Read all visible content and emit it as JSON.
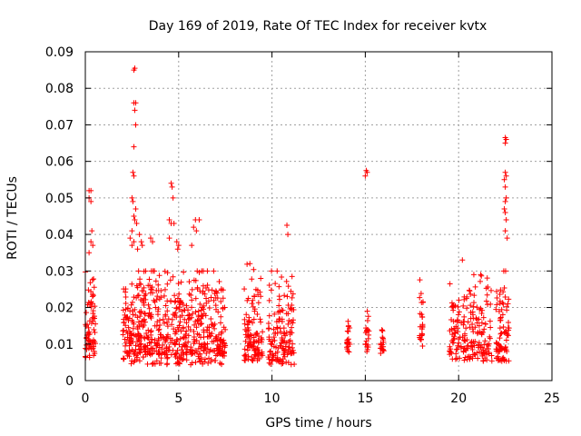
{
  "chart_data": {
    "type": "scatter",
    "title": "Day 169 of 2019, Rate Of TEC Index for receiver kvtx",
    "xlabel": "GPS time / hours",
    "ylabel": "ROTI / TECUs",
    "xlim": [
      0,
      25
    ],
    "ylim": [
      0,
      0.09
    ],
    "x_ticks": [
      0,
      5,
      10,
      15,
      20,
      25
    ],
    "y_ticks": [
      0,
      0.01,
      0.02,
      0.03,
      0.04,
      0.05,
      0.06,
      0.07,
      0.08,
      0.09
    ],
    "x_tick_labels": [
      "0",
      "5",
      "10",
      "15",
      "20",
      "25"
    ],
    "y_tick_labels": [
      "0",
      "0.01",
      "0.02",
      "0.03",
      "0.04",
      "0.05",
      "0.06",
      "0.07",
      "0.08",
      "0.09"
    ],
    "grid": true,
    "marker": "+",
    "marker_color": "#ff0000",
    "series": [
      {
        "name": "ROTI",
        "clusters": [
          {
            "x_start": 0.0,
            "x_end": 0.55,
            "y_min": 0.005,
            "y_max": 0.03,
            "count": 70
          },
          {
            "x_start": 2.0,
            "x_end": 7.5,
            "y_min": 0.003,
            "y_max": 0.03,
            "count": 620
          },
          {
            "x_start": 8.5,
            "x_end": 9.5,
            "y_min": 0.004,
            "y_max": 0.032,
            "count": 110
          },
          {
            "x_start": 9.8,
            "x_end": 11.2,
            "y_min": 0.003,
            "y_max": 0.03,
            "count": 140
          },
          {
            "x_start": 14.0,
            "x_end": 14.2,
            "y_min": 0.007,
            "y_max": 0.02,
            "count": 20
          },
          {
            "x_start": 15.0,
            "x_end": 15.2,
            "y_min": 0.007,
            "y_max": 0.019,
            "count": 20
          },
          {
            "x_start": 15.8,
            "x_end": 16.0,
            "y_min": 0.007,
            "y_max": 0.016,
            "count": 20
          },
          {
            "x_start": 17.9,
            "x_end": 18.1,
            "y_min": 0.008,
            "y_max": 0.029,
            "count": 25
          },
          {
            "x_start": 19.5,
            "x_end": 21.8,
            "y_min": 0.004,
            "y_max": 0.029,
            "count": 190
          },
          {
            "x_start": 22.0,
            "x_end": 22.7,
            "y_min": 0.004,
            "y_max": 0.03,
            "count": 80
          }
        ],
        "outliers": [
          {
            "x": 0.2,
            "y": 0.052
          },
          {
            "x": 0.3,
            "y": 0.052
          },
          {
            "x": 0.2,
            "y": 0.05
          },
          {
            "x": 0.3,
            "y": 0.049
          },
          {
            "x": 0.35,
            "y": 0.041
          },
          {
            "x": 0.3,
            "y": 0.038
          },
          {
            "x": 0.4,
            "y": 0.037
          },
          {
            "x": 0.2,
            "y": 0.035
          },
          {
            "x": 2.6,
            "y": 0.085
          },
          {
            "x": 2.65,
            "y": 0.0855
          },
          {
            "x": 2.6,
            "y": 0.076
          },
          {
            "x": 2.7,
            "y": 0.076
          },
          {
            "x": 2.65,
            "y": 0.074
          },
          {
            "x": 2.7,
            "y": 0.07
          },
          {
            "x": 2.6,
            "y": 0.064
          },
          {
            "x": 2.55,
            "y": 0.057
          },
          {
            "x": 2.6,
            "y": 0.056
          },
          {
            "x": 2.5,
            "y": 0.05
          },
          {
            "x": 2.55,
            "y": 0.049
          },
          {
            "x": 2.7,
            "y": 0.047
          },
          {
            "x": 2.6,
            "y": 0.045
          },
          {
            "x": 2.65,
            "y": 0.044
          },
          {
            "x": 2.75,
            "y": 0.043
          },
          {
            "x": 2.5,
            "y": 0.041
          },
          {
            "x": 2.4,
            "y": 0.039
          },
          {
            "x": 2.6,
            "y": 0.038
          },
          {
            "x": 2.5,
            "y": 0.037
          },
          {
            "x": 2.8,
            "y": 0.036
          },
          {
            "x": 2.9,
            "y": 0.04
          },
          {
            "x": 3.0,
            "y": 0.038
          },
          {
            "x": 3.05,
            "y": 0.037
          },
          {
            "x": 3.5,
            "y": 0.039
          },
          {
            "x": 3.6,
            "y": 0.038
          },
          {
            "x": 4.6,
            "y": 0.054
          },
          {
            "x": 4.65,
            "y": 0.053
          },
          {
            "x": 4.7,
            "y": 0.05
          },
          {
            "x": 4.5,
            "y": 0.044
          },
          {
            "x": 4.6,
            "y": 0.043
          },
          {
            "x": 4.75,
            "y": 0.043
          },
          {
            "x": 4.5,
            "y": 0.039
          },
          {
            "x": 4.9,
            "y": 0.038
          },
          {
            "x": 5.0,
            "y": 0.037
          },
          {
            "x": 4.95,
            "y": 0.036
          },
          {
            "x": 5.9,
            "y": 0.044
          },
          {
            "x": 6.1,
            "y": 0.044
          },
          {
            "x": 5.8,
            "y": 0.042
          },
          {
            "x": 5.95,
            "y": 0.041
          },
          {
            "x": 5.7,
            "y": 0.037
          },
          {
            "x": 10.8,
            "y": 0.0425
          },
          {
            "x": 10.85,
            "y": 0.04
          },
          {
            "x": 15.05,
            "y": 0.0575
          },
          {
            "x": 15.1,
            "y": 0.057
          },
          {
            "x": 15.0,
            "y": 0.056
          },
          {
            "x": 20.2,
            "y": 0.033
          },
          {
            "x": 22.5,
            "y": 0.0665
          },
          {
            "x": 22.55,
            "y": 0.066
          },
          {
            "x": 22.5,
            "y": 0.065
          },
          {
            "x": 22.5,
            "y": 0.057
          },
          {
            "x": 22.55,
            "y": 0.056
          },
          {
            "x": 22.45,
            "y": 0.055
          },
          {
            "x": 22.5,
            "y": 0.053
          },
          {
            "x": 22.55,
            "y": 0.05
          },
          {
            "x": 22.5,
            "y": 0.049
          },
          {
            "x": 22.45,
            "y": 0.047
          },
          {
            "x": 22.5,
            "y": 0.046
          },
          {
            "x": 22.55,
            "y": 0.044
          },
          {
            "x": 22.5,
            "y": 0.041
          },
          {
            "x": 22.6,
            "y": 0.039
          }
        ]
      }
    ]
  }
}
